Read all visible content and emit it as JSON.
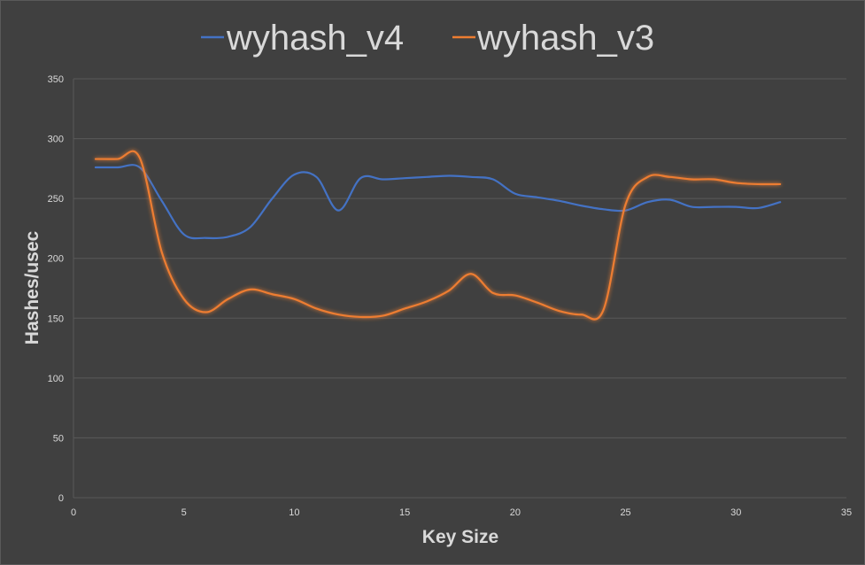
{
  "chart_data": {
    "type": "line",
    "xlabel": "Key Size",
    "ylabel": "Hashes/usec",
    "xlim": [
      0,
      35
    ],
    "ylim": [
      0,
      350
    ],
    "xticks": [
      0,
      5,
      10,
      15,
      20,
      25,
      30,
      35
    ],
    "yticks": [
      0,
      50,
      100,
      150,
      200,
      250,
      300,
      350
    ],
    "grid": "horizontal",
    "legend_position": "top",
    "x": [
      1,
      2,
      3,
      4,
      5,
      6,
      7,
      8,
      9,
      10,
      11,
      12,
      13,
      14,
      15,
      16,
      17,
      18,
      19,
      20,
      21,
      22,
      23,
      24,
      25,
      26,
      27,
      28,
      29,
      30,
      31,
      32
    ],
    "series": [
      {
        "name": "wyhash_v4",
        "color": "#4472c4",
        "values": [
          276,
          276,
          276,
          248,
          220,
          217,
          218,
          226,
          250,
          270,
          268,
          240,
          267,
          266,
          267,
          268,
          269,
          268,
          266,
          254,
          251,
          248,
          244,
          241,
          240,
          247,
          249,
          243,
          243,
          243,
          242,
          247
        ]
      },
      {
        "name": "wyhash_v3",
        "color": "#ed7d31",
        "values": [
          283,
          283,
          284,
          205,
          166,
          155,
          166,
          174,
          170,
          166,
          158,
          153,
          151,
          152,
          158,
          164,
          173,
          187,
          171,
          169,
          163,
          156,
          153,
          157,
          245,
          268,
          268,
          266,
          266,
          263,
          262,
          262
        ]
      }
    ]
  }
}
